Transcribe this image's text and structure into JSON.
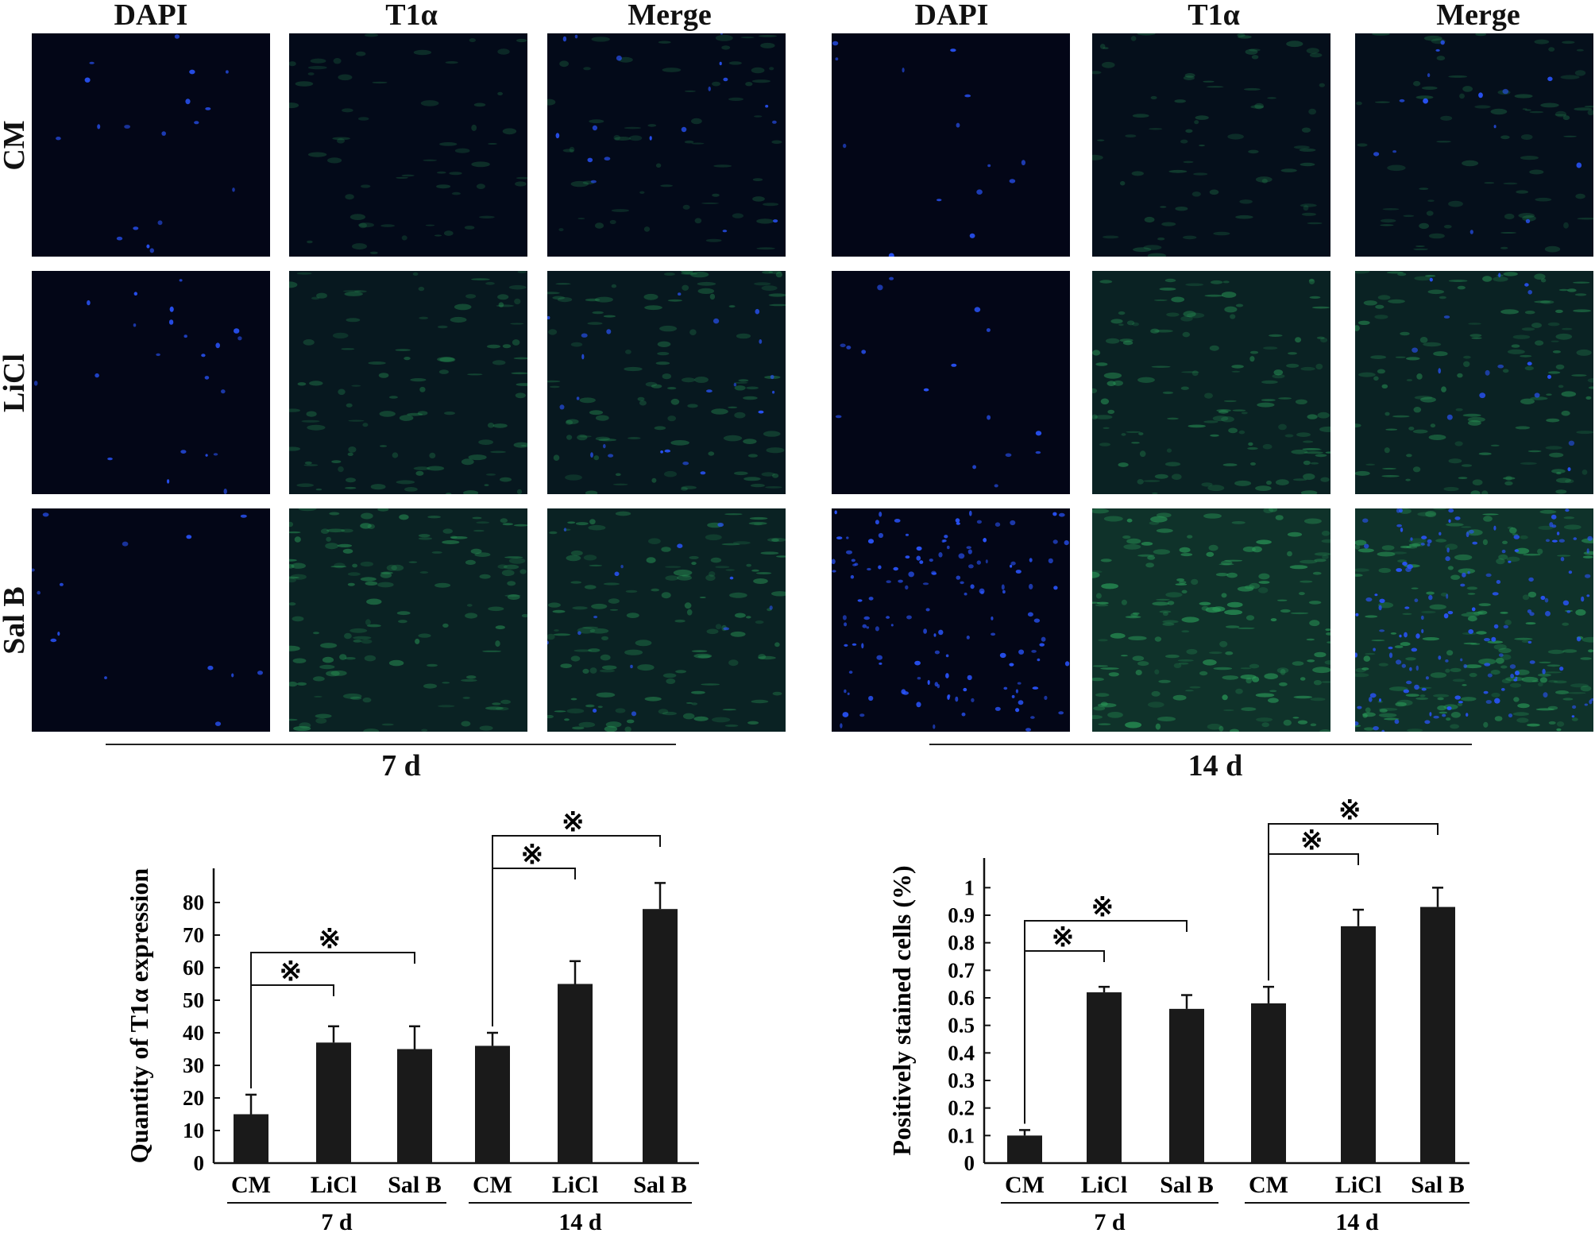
{
  "panels": {
    "columns": [
      "DAPI",
      "T1α",
      "Merge",
      "DAPI",
      "T1α",
      "Merge"
    ],
    "rows": [
      "CM",
      "LiCl",
      "Sal B"
    ],
    "timepoints": [
      "7 d",
      "14 d"
    ],
    "colors": {
      "background": "#030617",
      "dapi": "#2a55ff",
      "t1a": "#2a9a58"
    }
  },
  "chart_data": [
    {
      "type": "bar",
      "title": "",
      "xlabel": "",
      "ylabel": "Quantity of T1α expression",
      "ylim": [
        0,
        90
      ],
      "yticks": [
        "0",
        "10",
        "20",
        "30",
        "40",
        "50",
        "60",
        "70",
        "80"
      ],
      "groups": [
        "7 d",
        "14 d"
      ],
      "categories": [
        "CM",
        "LiCl",
        "Sal B",
        "CM",
        "LiCl",
        "Sal B"
      ],
      "values": [
        15,
        37,
        35,
        36,
        55,
        78
      ],
      "errors": [
        6,
        5,
        7,
        4,
        7,
        8
      ],
      "significance": [
        {
          "from": 0,
          "to": 1,
          "symbol": "※"
        },
        {
          "from": 0,
          "to": 2,
          "symbol": "※"
        },
        {
          "from": 3,
          "to": 4,
          "symbol": "※"
        },
        {
          "from": 3,
          "to": 5,
          "symbol": "※"
        }
      ],
      "bar_color": "#1a1a1a",
      "grid": false
    },
    {
      "type": "bar",
      "title": "",
      "xlabel": "",
      "ylabel": "Positively stained cells (%)",
      "ylim": [
        0,
        1.05
      ],
      "yticks": [
        "0",
        "0.1",
        "0.2",
        "0.3",
        "0.4",
        "0.5",
        "0.6",
        "0.7",
        "0.8",
        "0.9",
        "1"
      ],
      "groups": [
        "7 d",
        "14 d"
      ],
      "categories": [
        "CM",
        "LiCl",
        "Sal B",
        "CM",
        "LiCl",
        "Sal B"
      ],
      "values": [
        0.1,
        0.62,
        0.56,
        0.58,
        0.86,
        0.93
      ],
      "errors": [
        0.02,
        0.02,
        0.05,
        0.06,
        0.06,
        0.07
      ],
      "significance": [
        {
          "from": 0,
          "to": 1,
          "symbol": "※"
        },
        {
          "from": 0,
          "to": 2,
          "symbol": "※"
        },
        {
          "from": 3,
          "to": 4,
          "symbol": "※"
        },
        {
          "from": 3,
          "to": 5,
          "symbol": "※"
        }
      ],
      "bar_color": "#1a1a1a",
      "grid": false
    }
  ]
}
